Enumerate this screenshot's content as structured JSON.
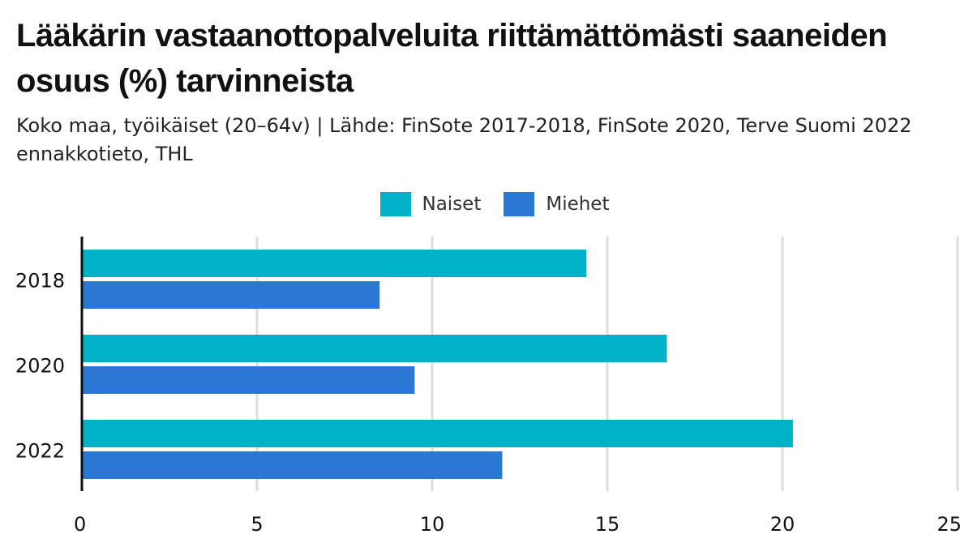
{
  "title": "Lääkärin vastaanottopalveluita riittämättömästi saaneiden osuus (%) tarvinneista",
  "subtitle": "Koko maa, työikäiset (20–64v) | Lähde: FinSote 2017-2018, FinSote 2020, Terve Suomi 2022 ennakkotieto, THL",
  "colors": {
    "naiset": "#00b2c8",
    "miehet": "#2a77d4",
    "grid": "#dddddd",
    "axis": "#111111"
  },
  "chart_data": {
    "type": "bar",
    "orientation": "horizontal",
    "title": "Lääkärin vastaanottopalveluita riittämättömästi saaneiden osuus (%) tarvinneista",
    "subtitle": "Koko maa, työikäiset (20–64v) | Lähde: FinSote 2017-2018, FinSote 2020, Terve Suomi 2022 ennakkotieto, THL",
    "categories": [
      "2018",
      "2020",
      "2022"
    ],
    "series": [
      {
        "name": "Naiset",
        "values": [
          14.4,
          16.7,
          20.3
        ]
      },
      {
        "name": "Miehet",
        "values": [
          8.5,
          9.5,
          12.0
        ]
      }
    ],
    "xlabel": "",
    "ylabel": "",
    "xlim": [
      0,
      25
    ],
    "xticks": [
      0,
      5,
      10,
      15,
      20,
      25
    ],
    "grid": "vertical",
    "legend": "top-center"
  }
}
